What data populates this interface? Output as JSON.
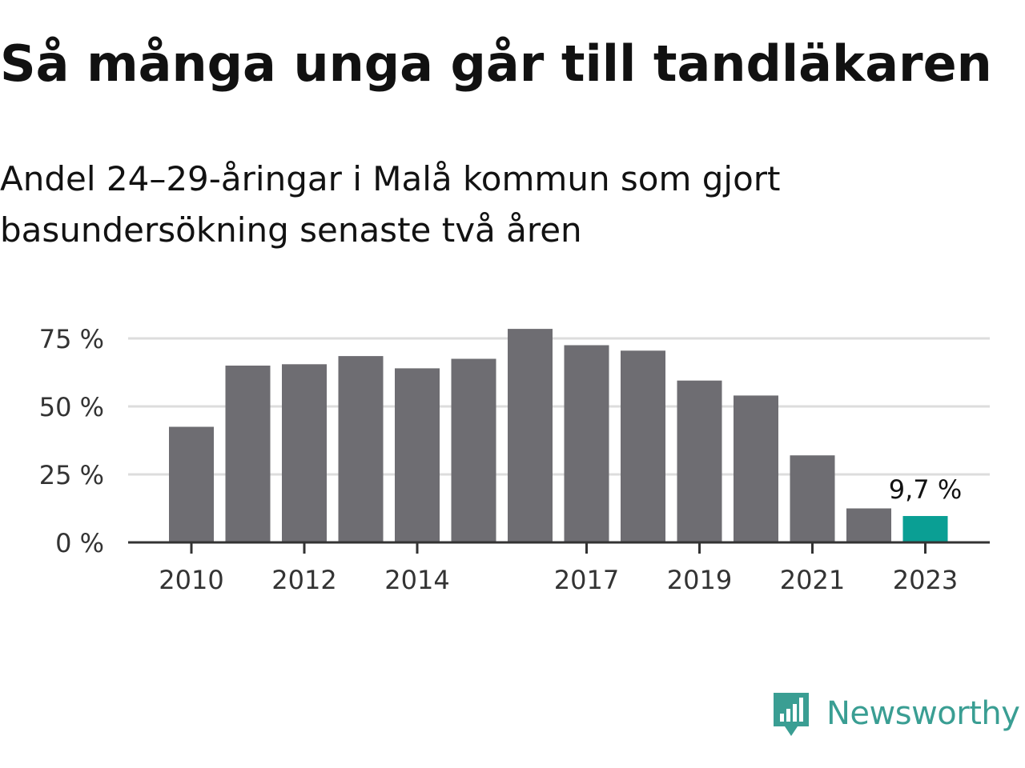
{
  "header": {
    "title": "Så många unga går till tandläkaren",
    "subtitle": "Andel 24–29-åringar i Malå kommun som gjort basundersökning senaste två åren"
  },
  "colors": {
    "bar": "#6e6d72",
    "highlight": "#0a9f94",
    "grid": "#dddddd",
    "axis": "#333333",
    "brand": "#3a9e93"
  },
  "chart_data": {
    "type": "bar",
    "x": [
      2010,
      2011,
      2012,
      2013,
      2014,
      2015,
      2016,
      2017,
      2018,
      2019,
      2020,
      2021,
      2022,
      2023
    ],
    "values": [
      42.5,
      65,
      65.5,
      68.5,
      64,
      67.5,
      78.5,
      72.5,
      70.5,
      59.5,
      54,
      32,
      12.5,
      9.7
    ],
    "x_tick_labels": [
      "2010",
      "2012",
      "2014",
      "2017",
      "2019",
      "2021",
      "2023"
    ],
    "y_ticks": [
      0,
      25,
      50,
      75
    ],
    "y_tick_labels": [
      "0 %",
      "25 %",
      "50 %",
      "75 %"
    ],
    "ylim": [
      0,
      80
    ],
    "highlight_index": 13,
    "annotation": "9,7 %",
    "grid": true
  },
  "brand": {
    "name": "Newsworthy",
    "icon": "newsworthy-logo-icon"
  }
}
